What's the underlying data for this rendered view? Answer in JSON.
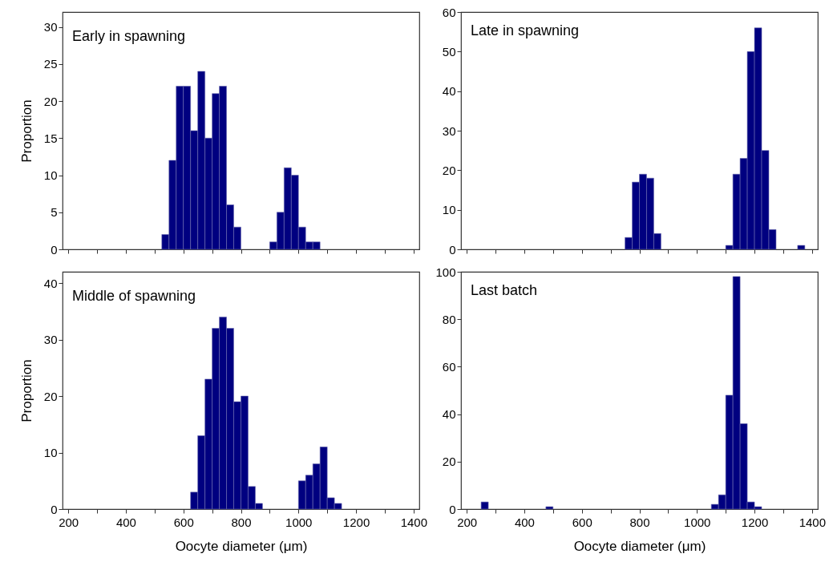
{
  "chart_data": [
    {
      "type": "histogram",
      "title": "Early in spawning",
      "ylabel": "Proportion",
      "color": "#000080",
      "tick_labels": "y",
      "bins": [
        525,
        550,
        575,
        600,
        625,
        650,
        675,
        700,
        725,
        750,
        775,
        800,
        825,
        850,
        875,
        900,
        925,
        950,
        975,
        1000,
        1025,
        1050,
        1075
      ],
      "values": [
        2,
        12,
        22,
        22,
        16,
        24,
        15,
        21,
        22,
        6,
        3,
        0,
        0,
        0,
        0,
        1,
        5,
        11,
        10,
        3,
        1,
        1
      ],
      "xlim": [
        180,
        1420
      ],
      "xticks": [
        200,
        {
          "value": 300,
          "label": null
        },
        400,
        {
          "value": 500,
          "label": null
        },
        600,
        {
          "value": 700,
          "label": null
        },
        800,
        {
          "value": 900,
          "label": null
        },
        1000,
        {
          "value": 1100,
          "label": null
        },
        1200,
        {
          "value": 1300,
          "label": null
        },
        1400
      ],
      "ylim": [
        0,
        32
      ],
      "yticks": [
        0,
        5,
        10,
        15,
        20,
        25,
        30
      ],
      "grid": false
    },
    {
      "type": "histogram",
      "title": "Late in spawning",
      "color": "#000080",
      "tick_labels": "y",
      "bins": [
        750,
        775,
        800,
        825,
        850,
        875,
        900,
        925,
        950,
        975,
        1000,
        1025,
        1050,
        1075,
        1100,
        1125,
        1150,
        1175,
        1200,
        1225,
        1250,
        1275,
        1300,
        1325,
        1350,
        1375
      ],
      "values": [
        3,
        17,
        19,
        18,
        4,
        0,
        0,
        0,
        0,
        0,
        0,
        0,
        0,
        0,
        1,
        19,
        23,
        50,
        56,
        25,
        5,
        0,
        0,
        0,
        1
      ],
      "xlim": [
        180,
        1420
      ],
      "xticks": [
        200,
        {
          "value": 300,
          "label": null
        },
        400,
        {
          "value": 500,
          "label": null
        },
        600,
        {
          "value": 700,
          "label": null
        },
        800,
        {
          "value": 900,
          "label": null
        },
        1000,
        {
          "value": 1100,
          "label": null
        },
        1200,
        {
          "value": 1300,
          "label": null
        },
        1400
      ],
      "ylim": [
        0,
        60
      ],
      "yticks": [
        0,
        10,
        20,
        30,
        40,
        50,
        60
      ],
      "grid": false
    },
    {
      "type": "histogram",
      "title": "Middle of spawning",
      "ylabel": "Proportion",
      "xlabel": "Oocyte diameter (μm)",
      "color": "#000080",
      "bins": [
        625,
        650,
        675,
        700,
        725,
        750,
        775,
        800,
        825,
        850,
        875,
        900,
        925,
        950,
        975,
        1000,
        1025,
        1050,
        1075,
        1100,
        1125,
        1150
      ],
      "values": [
        3,
        13,
        23,
        32,
        34,
        32,
        19,
        20,
        4,
        1,
        0,
        0,
        0,
        0,
        0,
        5,
        6,
        8,
        11,
        2,
        1
      ],
      "xlim": [
        180,
        1420
      ],
      "xticks": [
        200,
        {
          "value": 300,
          "label": null
        },
        400,
        {
          "value": 500,
          "label": null
        },
        600,
        {
          "value": 700,
          "label": null
        },
        800,
        {
          "value": 900,
          "label": null
        },
        1000,
        {
          "value": 1100,
          "label": null
        },
        1200,
        {
          "value": 1300,
          "label": null
        },
        1400
      ],
      "ylim": [
        0,
        42
      ],
      "yticks": [
        0,
        10,
        20,
        30,
        40
      ],
      "grid": false
    },
    {
      "type": "histogram",
      "title": "Last batch",
      "xlabel": "Oocyte diameter (μm)",
      "color": "#000080",
      "bins": [
        250,
        275,
        300,
        325,
        350,
        375,
        400,
        425,
        450,
        475,
        500,
        525,
        550,
        575,
        600,
        625,
        650,
        675,
        700,
        725,
        750,
        775,
        800,
        825,
        850,
        875,
        900,
        925,
        950,
        975,
        1000,
        1025,
        1050,
        1075,
        1100,
        1125,
        1150,
        1175,
        1200,
        1225
      ],
      "values": [
        3,
        0,
        0,
        0,
        0,
        0,
        0,
        0,
        0,
        1,
        0,
        0,
        0,
        0,
        0,
        0,
        0,
        0,
        0,
        0,
        0,
        0,
        0,
        0,
        0,
        0,
        0,
        0,
        0,
        0,
        0,
        0,
        2,
        6,
        48,
        98,
        36,
        3,
        1
      ],
      "xlim": [
        180,
        1420
      ],
      "xticks": [
        200,
        {
          "value": 300,
          "label": null
        },
        400,
        {
          "value": 500,
          "label": null
        },
        600,
        {
          "value": 700,
          "label": null
        },
        800,
        {
          "value": 900,
          "label": null
        },
        1000,
        {
          "value": 1100,
          "label": null
        },
        1200,
        {
          "value": 1300,
          "label": null
        },
        1400
      ],
      "ylim": [
        0,
        100
      ],
      "yticks": [
        0,
        20,
        40,
        60,
        80,
        100
      ],
      "grid": false
    }
  ]
}
